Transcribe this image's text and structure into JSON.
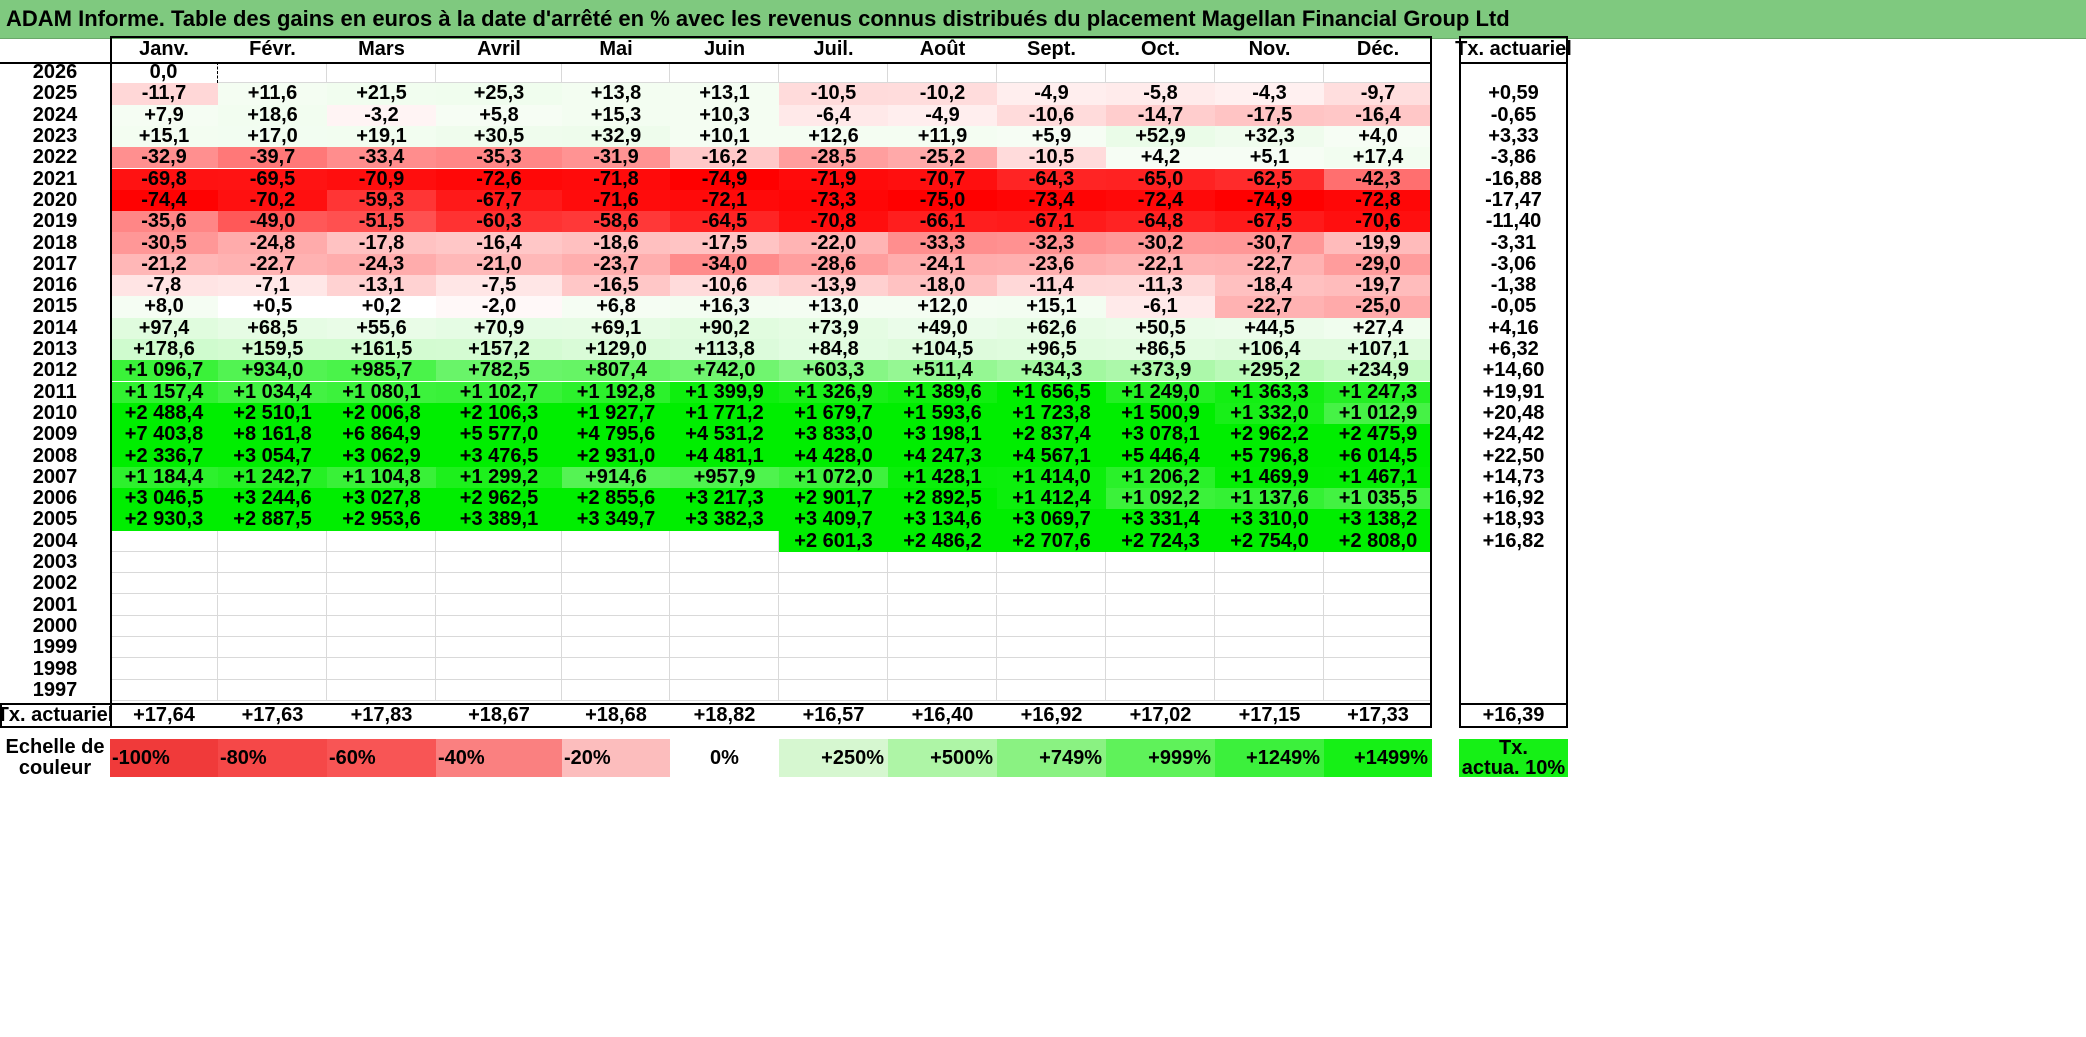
{
  "title": "ADAM Informe. Table des gains en euros à la date d'arrêté en % avec les revenus connus distribués du placement Magellan Financial Group Ltd",
  "months": [
    "Janv.",
    "Févr.",
    "Mars",
    "Avril",
    "Mai",
    "Juin",
    "Juil.",
    "Août",
    "Sept.",
    "Oct.",
    "Nov.",
    "Déc."
  ],
  "rate_header": "Tx. actuariel",
  "rows": [
    {
      "year": "2026",
      "values": [
        "0,0",
        "",
        "",
        "",
        "",
        "",
        "",
        "",
        "",
        "",
        "",
        ""
      ],
      "rate": ""
    },
    {
      "year": "2025",
      "values": [
        "-11,7",
        "+11,6",
        "+21,5",
        "+25,3",
        "+13,8",
        "+13,1",
        "-10,5",
        "-10,2",
        "-4,9",
        "-5,8",
        "-4,3",
        "-9,7"
      ],
      "rate": "+0,59"
    },
    {
      "year": "2024",
      "values": [
        "+7,9",
        "+18,6",
        "-3,2",
        "+5,8",
        "+15,3",
        "+10,3",
        "-6,4",
        "-4,9",
        "-10,6",
        "-14,7",
        "-17,5",
        "-16,4"
      ],
      "rate": "-0,65"
    },
    {
      "year": "2023",
      "values": [
        "+15,1",
        "+17,0",
        "+19,1",
        "+30,5",
        "+32,9",
        "+10,1",
        "+12,6",
        "+11,9",
        "+5,9",
        "+52,9",
        "+32,3",
        "+4,0"
      ],
      "rate": "+3,33"
    },
    {
      "year": "2022",
      "values": [
        "-32,9",
        "-39,7",
        "-33,4",
        "-35,3",
        "-31,9",
        "-16,2",
        "-28,5",
        "-25,2",
        "-10,5",
        "+4,2",
        "+5,1",
        "+17,4"
      ],
      "rate": "-3,86"
    },
    {
      "year": "2021",
      "values": [
        "-69,8",
        "-69,5",
        "-70,9",
        "-72,6",
        "-71,8",
        "-74,9",
        "-71,9",
        "-70,7",
        "-64,3",
        "-65,0",
        "-62,5",
        "-42,3"
      ],
      "rate": "-16,88"
    },
    {
      "year": "2020",
      "values": [
        "-74,4",
        "-70,2",
        "-59,3",
        "-67,7",
        "-71,6",
        "-72,1",
        "-73,3",
        "-75,0",
        "-73,4",
        "-72,4",
        "-74,9",
        "-72,8"
      ],
      "rate": "-17,47"
    },
    {
      "year": "2019",
      "values": [
        "-35,6",
        "-49,0",
        "-51,5",
        "-60,3",
        "-58,6",
        "-64,5",
        "-70,8",
        "-66,1",
        "-67,1",
        "-64,8",
        "-67,5",
        "-70,6"
      ],
      "rate": "-11,40"
    },
    {
      "year": "2018",
      "values": [
        "-30,5",
        "-24,8",
        "-17,8",
        "-16,4",
        "-18,6",
        "-17,5",
        "-22,0",
        "-33,3",
        "-32,3",
        "-30,2",
        "-30,7",
        "-19,9"
      ],
      "rate": "-3,31"
    },
    {
      "year": "2017",
      "values": [
        "-21,2",
        "-22,7",
        "-24,3",
        "-21,0",
        "-23,7",
        "-34,0",
        "-28,6",
        "-24,1",
        "-23,6",
        "-22,1",
        "-22,7",
        "-29,0"
      ],
      "rate": "-3,06"
    },
    {
      "year": "2016",
      "values": [
        "-7,8",
        "-7,1",
        "-13,1",
        "-7,5",
        "-16,5",
        "-10,6",
        "-13,9",
        "-18,0",
        "-11,4",
        "-11,3",
        "-18,4",
        "-19,7"
      ],
      "rate": "-1,38"
    },
    {
      "year": "2015",
      "values": [
        "+8,0",
        "+0,5",
        "+0,2",
        "-2,0",
        "+6,8",
        "+16,3",
        "+13,0",
        "+12,0",
        "+15,1",
        "-6,1",
        "-22,7",
        "-25,0"
      ],
      "rate": "-0,05"
    },
    {
      "year": "2014",
      "values": [
        "+97,4",
        "+68,5",
        "+55,6",
        "+70,9",
        "+69,1",
        "+90,2",
        "+73,9",
        "+49,0",
        "+62,6",
        "+50,5",
        "+44,5",
        "+27,4"
      ],
      "rate": "+4,16"
    },
    {
      "year": "2013",
      "values": [
        "+178,6",
        "+159,5",
        "+161,5",
        "+157,2",
        "+129,0",
        "+113,8",
        "+84,8",
        "+104,5",
        "+96,5",
        "+86,5",
        "+106,4",
        "+107,1"
      ],
      "rate": "+6,32"
    },
    {
      "year": "2012",
      "values": [
        "+1 096,7",
        "+934,0",
        "+985,7",
        "+782,5",
        "+807,4",
        "+742,0",
        "+603,3",
        "+511,4",
        "+434,3",
        "+373,9",
        "+295,2",
        "+234,9"
      ],
      "rate": "+14,60"
    },
    {
      "year": "2011",
      "values": [
        "+1 157,4",
        "+1 034,4",
        "+1 080,1",
        "+1 102,7",
        "+1 192,8",
        "+1 399,9",
        "+1 326,9",
        "+1 389,6",
        "+1 656,5",
        "+1 249,0",
        "+1 363,3",
        "+1 247,3"
      ],
      "rate": "+19,91"
    },
    {
      "year": "2010",
      "values": [
        "+2 488,4",
        "+2 510,1",
        "+2 006,8",
        "+2 106,3",
        "+1 927,7",
        "+1 771,2",
        "+1 679,7",
        "+1 593,6",
        "+1 723,8",
        "+1 500,9",
        "+1 332,0",
        "+1 012,9"
      ],
      "rate": "+20,48"
    },
    {
      "year": "2009",
      "values": [
        "+7 403,8",
        "+8 161,8",
        "+6 864,9",
        "+5 577,0",
        "+4 795,6",
        "+4 531,2",
        "+3 833,0",
        "+3 198,1",
        "+2 837,4",
        "+3 078,1",
        "+2 962,2",
        "+2 475,9"
      ],
      "rate": "+24,42"
    },
    {
      "year": "2008",
      "values": [
        "+2 336,7",
        "+3 054,7",
        "+3 062,9",
        "+3 476,5",
        "+2 931,0",
        "+4 481,1",
        "+4 428,0",
        "+4 247,3",
        "+4 567,1",
        "+5 446,4",
        "+5 796,8",
        "+6 014,5"
      ],
      "rate": "+22,50"
    },
    {
      "year": "2007",
      "values": [
        "+1 184,4",
        "+1 242,7",
        "+1 104,8",
        "+1 299,2",
        "+914,6",
        "+957,9",
        "+1 072,0",
        "+1 428,1",
        "+1 414,0",
        "+1 206,2",
        "+1 469,9",
        "+1 467,1"
      ],
      "rate": "+14,73"
    },
    {
      "year": "2006",
      "values": [
        "+3 046,5",
        "+3 244,6",
        "+3 027,8",
        "+2 962,5",
        "+2 855,6",
        "+3 217,3",
        "+2 901,7",
        "+2 892,5",
        "+1 412,4",
        "+1 092,2",
        "+1 137,6",
        "+1 035,5"
      ],
      "rate": "+16,92"
    },
    {
      "year": "2005",
      "values": [
        "+2 930,3",
        "+2 887,5",
        "+2 953,6",
        "+3 389,1",
        "+3 349,7",
        "+3 382,3",
        "+3 409,7",
        "+3 134,6",
        "+3 069,7",
        "+3 331,4",
        "+3 310,0",
        "+3 138,2"
      ],
      "rate": "+18,93"
    },
    {
      "year": "2004",
      "values": [
        "",
        "",
        "",
        "",
        "",
        "",
        "+2 601,3",
        "+2 486,2",
        "+2 707,6",
        "+2 724,3",
        "+2 754,0",
        "+2 808,0"
      ],
      "rate": "+16,82"
    },
    {
      "year": "2003",
      "values": [
        "",
        "",
        "",
        "",
        "",
        "",
        "",
        "",
        "",
        "",
        "",
        ""
      ],
      "rate": ""
    },
    {
      "year": "2002",
      "values": [
        "",
        "",
        "",
        "",
        "",
        "",
        "",
        "",
        "",
        "",
        "",
        ""
      ],
      "rate": ""
    },
    {
      "year": "2001",
      "values": [
        "",
        "",
        "",
        "",
        "",
        "",
        "",
        "",
        "",
        "",
        "",
        ""
      ],
      "rate": ""
    },
    {
      "year": "2000",
      "values": [
        "",
        "",
        "",
        "",
        "",
        "",
        "",
        "",
        "",
        "",
        "",
        ""
      ],
      "rate": ""
    },
    {
      "year": "1999",
      "values": [
        "",
        "",
        "",
        "",
        "",
        "",
        "",
        "",
        "",
        "",
        "",
        ""
      ],
      "rate": ""
    },
    {
      "year": "1998",
      "values": [
        "",
        "",
        "",
        "",
        "",
        "",
        "",
        "",
        "",
        "",
        "",
        ""
      ],
      "rate": ""
    },
    {
      "year": "1997",
      "values": [
        "",
        "",
        "",
        "",
        "",
        "",
        "",
        "",
        "",
        "",
        "",
        ""
      ],
      "rate": ""
    }
  ],
  "footer": {
    "label": "Tx. actuariel",
    "values": [
      "+17,64",
      "+17,63",
      "+17,83",
      "+18,67",
      "+18,68",
      "+18,82",
      "+16,57",
      "+16,40",
      "+16,92",
      "+17,02",
      "+17,15",
      "+17,33"
    ],
    "total": "+16,39"
  },
  "scale": {
    "label_line1": "Echelle de",
    "label_line2": "couleur",
    "items": [
      {
        "label": "-100%",
        "color": "#f03a3a"
      },
      {
        "label": "-80%",
        "color": "#f54848"
      },
      {
        "label": "-60%",
        "color": "#f85555"
      },
      {
        "label": "-40%",
        "color": "#fa8080"
      },
      {
        "label": "-20%",
        "color": "#fcbdbd"
      },
      {
        "label": "0%",
        "color": "#ffffff"
      },
      {
        "label": "+250%",
        "color": "#d6f7d0"
      },
      {
        "label": "+500%",
        "color": "#aef5a6"
      },
      {
        "label": "+749%",
        "color": "#8af282"
      },
      {
        "label": "+999%",
        "color": "#5ff25a"
      },
      {
        "label": "+1249%",
        "color": "#3cf03c"
      },
      {
        "label": "+1499%",
        "color": "#16f016"
      }
    ],
    "target_line1": "Tx.",
    "target_line2": "actua. 10%",
    "target_color": "#16f016"
  },
  "colors": {
    "title_bg": "#7fc97f",
    "neg_max": "#ff0000",
    "pos_max": "#00ee00"
  }
}
